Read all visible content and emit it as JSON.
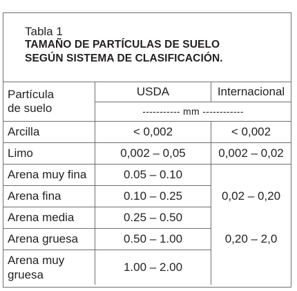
{
  "caption": {
    "label": "Tabla 1",
    "title_line1": "TAMAÑO DE PARTÍCULAS DE SUELO",
    "title_line2": "SEGÚN SISTEMA DE CLASIFICACIÓN."
  },
  "header": {
    "col1_line1": "Partícula",
    "col1_line2": "de suelo",
    "usda": "USDA",
    "internacional": "Internacional",
    "units": "----------- mm ------------"
  },
  "rows": [
    {
      "particle": "Arcilla",
      "usda": "< 0,002",
      "intl": "< 0,002"
    },
    {
      "particle": "Limo",
      "usda": "0,002 – 0,05",
      "intl": "0,002 – 0,02"
    },
    {
      "particle": "Arena muy fina",
      "usda": "0.05 – 0.10",
      "intl": ""
    },
    {
      "particle": "Arena fina",
      "usda": "0.10 – 0.25",
      "intl": "0,02 – 0,20"
    },
    {
      "particle": "Arena media",
      "usda": "0.25 – 0.50",
      "intl": ""
    },
    {
      "particle": "Arena gruesa",
      "usda": "0.50 – 1.00",
      "intl": "0,20 – 2,0"
    },
    {
      "particle_line1": "Arena muy",
      "particle_line2": "gruesa",
      "usda": "1.00 – 2.00",
      "intl": ""
    }
  ]
}
